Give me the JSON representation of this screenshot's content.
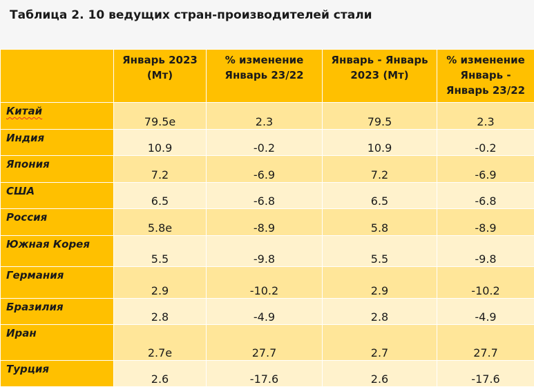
{
  "title": "Таблица 2. 10 ведущих стран-производителей стали",
  "headers": [
    "",
    "Январь 2023 (Мт)",
    "% изменение Январь 23/22",
    "Январь - Январь 2023 (Мт)",
    "% изменение Январь - Январь 23/22"
  ],
  "rows": [
    {
      "country": "Китай",
      "jan2023": "79.5e",
      "pct": "2.3",
      "ytd": "79.5",
      "ytd_pct": "2.3"
    },
    {
      "country": "Индия",
      "jan2023": "10.9",
      "pct": "-0.2",
      "ytd": "10.9",
      "ytd_pct": "-0.2"
    },
    {
      "country": "Япония",
      "jan2023": "7.2",
      "pct": "-6.9",
      "ytd": "7.2",
      "ytd_pct": "-6.9"
    },
    {
      "country": "США",
      "jan2023": "6.5",
      "pct": "-6.8",
      "ytd": "6.5",
      "ytd_pct": "-6.8"
    },
    {
      "country": "Россия",
      "jan2023": "5.8e",
      "pct": "-8.9",
      "ytd": "5.8",
      "ytd_pct": "-8.9"
    },
    {
      "country": "Южная Корея",
      "jan2023": "5.5",
      "pct": "-9.8",
      "ytd": "5.5",
      "ytd_pct": "-9.8"
    },
    {
      "country": "Германия",
      "jan2023": "2.9",
      "pct": "-10.2",
      "ytd": "2.9",
      "ytd_pct": "-10.2"
    },
    {
      "country": "Бразилия",
      "jan2023": "2.8",
      "pct": "-4.9",
      "ytd": "2.8",
      "ytd_pct": "-4.9"
    },
    {
      "country": "Иран",
      "jan2023": "2.7e",
      "pct": "27.7",
      "ytd": "2.7",
      "ytd_pct": "27.7"
    },
    {
      "country": "Турция",
      "jan2023": "2.6",
      "pct": "-17.6",
      "ytd": "2.6",
      "ytd_pct": "-17.6"
    }
  ],
  "colors": {
    "header_bg": "#ffc000",
    "row_dark": "#ffe699",
    "row_light": "#fff2cc",
    "title_bg": "#f6f6f6"
  }
}
